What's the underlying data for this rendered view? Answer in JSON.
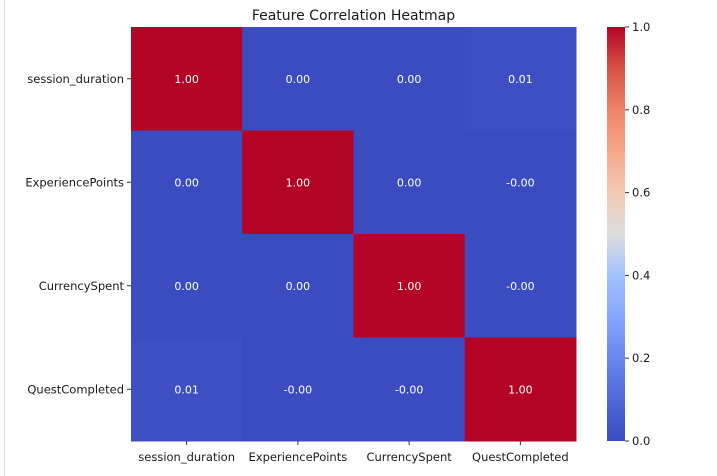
{
  "chart_data": {
    "type": "heatmap",
    "title": "Feature Correlation Heatmap",
    "row_labels": [
      "session_duration",
      "ExperiencePoints",
      "CurrencySpent",
      "QuestCompleted"
    ],
    "col_labels": [
      "session_duration",
      "ExperiencePoints",
      "CurrencySpent",
      "QuestCompleted"
    ],
    "values": [
      [
        1.0,
        0.0,
        0.0,
        0.01
      ],
      [
        0.0,
        1.0,
        0.0,
        -0.0
      ],
      [
        0.0,
        0.0,
        1.0,
        -0.0
      ],
      [
        0.01,
        -0.0,
        -0.0,
        1.0
      ]
    ],
    "cell_labels": [
      [
        "1.00",
        "0.00",
        "0.00",
        "0.01"
      ],
      [
        "0.00",
        "1.00",
        "0.00",
        "-0.00"
      ],
      [
        "0.00",
        "0.00",
        "1.00",
        "-0.00"
      ],
      [
        "0.01",
        "-0.00",
        "-0.00",
        "1.00"
      ]
    ],
    "colormap": "coolwarm",
    "colorbar": {
      "vmin": 0.0,
      "vmax": 1.0,
      "ticks": [
        0.0,
        0.2,
        0.4,
        0.6,
        0.8,
        1.0
      ],
      "tick_labels": [
        "0.0",
        "0.2",
        "0.4",
        "0.6",
        "0.8",
        "1.0"
      ]
    },
    "colors": {
      "low": "#3b4cc0",
      "mid": "#dddddd",
      "high": "#b40426"
    }
  }
}
